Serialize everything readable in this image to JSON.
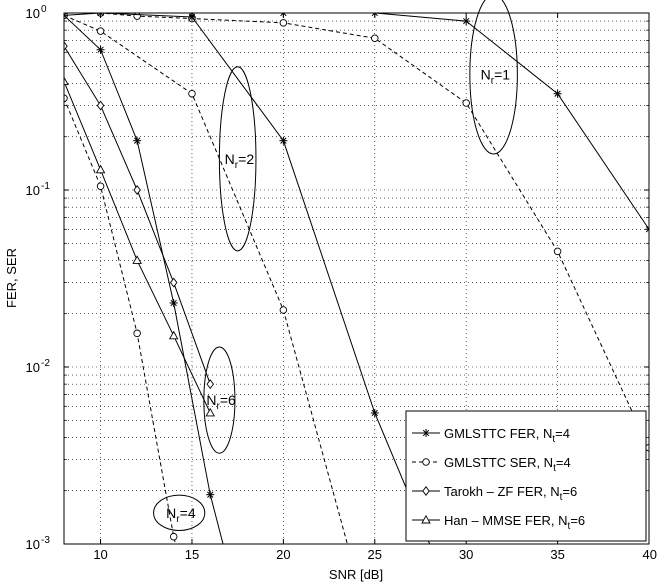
{
  "chart_data": {
    "type": "line",
    "xlabel": "SNR [dB]",
    "ylabel": "FER, SER",
    "xlim": [
      8,
      40
    ],
    "ylim": [
      0.001,
      1
    ],
    "yscale": "log",
    "grid": true,
    "x_ticks": [
      10,
      15,
      20,
      25,
      30,
      35,
      40
    ],
    "x_tick_labels": [
      "10",
      "15",
      "20",
      "25",
      "30",
      "35",
      "40"
    ],
    "y_ticks": [
      0.001,
      0.01,
      0.1,
      1
    ],
    "legend_position": "bottom-right",
    "legend": [
      {
        "label": "GMLSTTC FER, N",
        "sub": "t",
        "tail": "=4",
        "marker": "star",
        "dash": "solid"
      },
      {
        "label": "GMLSTTC SER, N",
        "sub": "t",
        "tail": "=4",
        "marker": "circle",
        "dash": "dashed"
      },
      {
        "label": "Tarokh – ZF FER, N",
        "sub": "t",
        "tail": "=6",
        "marker": "diamond",
        "dash": "solid"
      },
      {
        "label": "Han – MMSE FER, N",
        "sub": "t",
        "tail": "=6",
        "marker": "triangle",
        "dash": "solid"
      }
    ],
    "series": [
      {
        "group": "Nr=1",
        "marker": "star",
        "dash": "solid",
        "points": [
          [
            8,
            1.0
          ],
          [
            10,
            1.0
          ],
          [
            15,
            1.0
          ],
          [
            20,
            1.0
          ],
          [
            25,
            1.0
          ],
          [
            30,
            0.9
          ],
          [
            35,
            0.35
          ],
          [
            40,
            0.06
          ]
        ]
      },
      {
        "group": "Nr=1",
        "marker": "circle",
        "dash": "dashed",
        "points": [
          [
            8,
            1.0
          ],
          [
            10,
            1.0
          ],
          [
            12,
            0.96
          ],
          [
            15,
            0.93
          ],
          [
            20,
            0.88
          ],
          [
            25,
            0.72
          ],
          [
            30,
            0.31
          ],
          [
            35,
            0.045
          ],
          [
            40,
            0.0035
          ]
        ]
      },
      {
        "group": "Nr=2",
        "marker": "star",
        "dash": "solid",
        "points": [
          [
            8,
            0.97
          ],
          [
            10,
            1.0
          ],
          [
            15,
            0.95
          ],
          [
            20,
            0.19
          ],
          [
            25,
            0.0055
          ],
          [
            28,
            0.001
          ]
        ]
      },
      {
        "group": "Nr=2",
        "marker": "circle",
        "dash": "dashed",
        "points": [
          [
            8,
            0.97
          ],
          [
            10,
            0.79
          ],
          [
            15,
            0.35
          ],
          [
            20,
            0.021
          ],
          [
            23.5,
            0.001
          ]
        ]
      },
      {
        "group": "Nr=4",
        "marker": "star",
        "dash": "solid",
        "points": [
          [
            8,
            0.97
          ],
          [
            10,
            0.62
          ],
          [
            12,
            0.19
          ],
          [
            14,
            0.023
          ],
          [
            16,
            0.0019
          ],
          [
            16.7,
            0.001
          ]
        ]
      },
      {
        "group": "Nr=4",
        "marker": "circle",
        "dash": "dashed",
        "points": [
          [
            8,
            0.33
          ],
          [
            10,
            0.105
          ],
          [
            12,
            0.0155
          ],
          [
            14,
            0.0011
          ],
          [
            14.1,
            0.001
          ]
        ]
      },
      {
        "group": "Nr=6",
        "marker": "diamond",
        "dash": "solid",
        "points": [
          [
            8,
            0.65
          ],
          [
            10,
            0.3
          ],
          [
            12,
            0.1
          ],
          [
            14,
            0.03
          ],
          [
            16,
            0.008
          ]
        ]
      },
      {
        "group": "Nr=6",
        "marker": "triangle",
        "dash": "solid",
        "points": [
          [
            8,
            0.41
          ],
          [
            10,
            0.13
          ],
          [
            12,
            0.04
          ],
          [
            14,
            0.015
          ],
          [
            16,
            0.0055
          ]
        ]
      }
    ],
    "annotations": [
      {
        "base": "N",
        "sub": "r",
        "tail": "=1",
        "x": 31.5,
        "y": 0.45,
        "rx_data": 1.3,
        "ry_decades": 0.45
      },
      {
        "base": "N",
        "sub": "r",
        "tail": "=2",
        "x": 17.5,
        "y": 0.15,
        "rx_data": 1.0,
        "ry_decades": 0.52
      },
      {
        "base": "N",
        "sub": "r",
        "tail": "=6",
        "x": 16.5,
        "y": 0.0065,
        "rx_data": 0.85,
        "ry_decades": 0.3
      },
      {
        "base": "N",
        "sub": "r",
        "tail": "=4",
        "x": 14.3,
        "y": 0.0015,
        "rx_data": 1.4,
        "ry_decades": 0.1
      }
    ]
  }
}
